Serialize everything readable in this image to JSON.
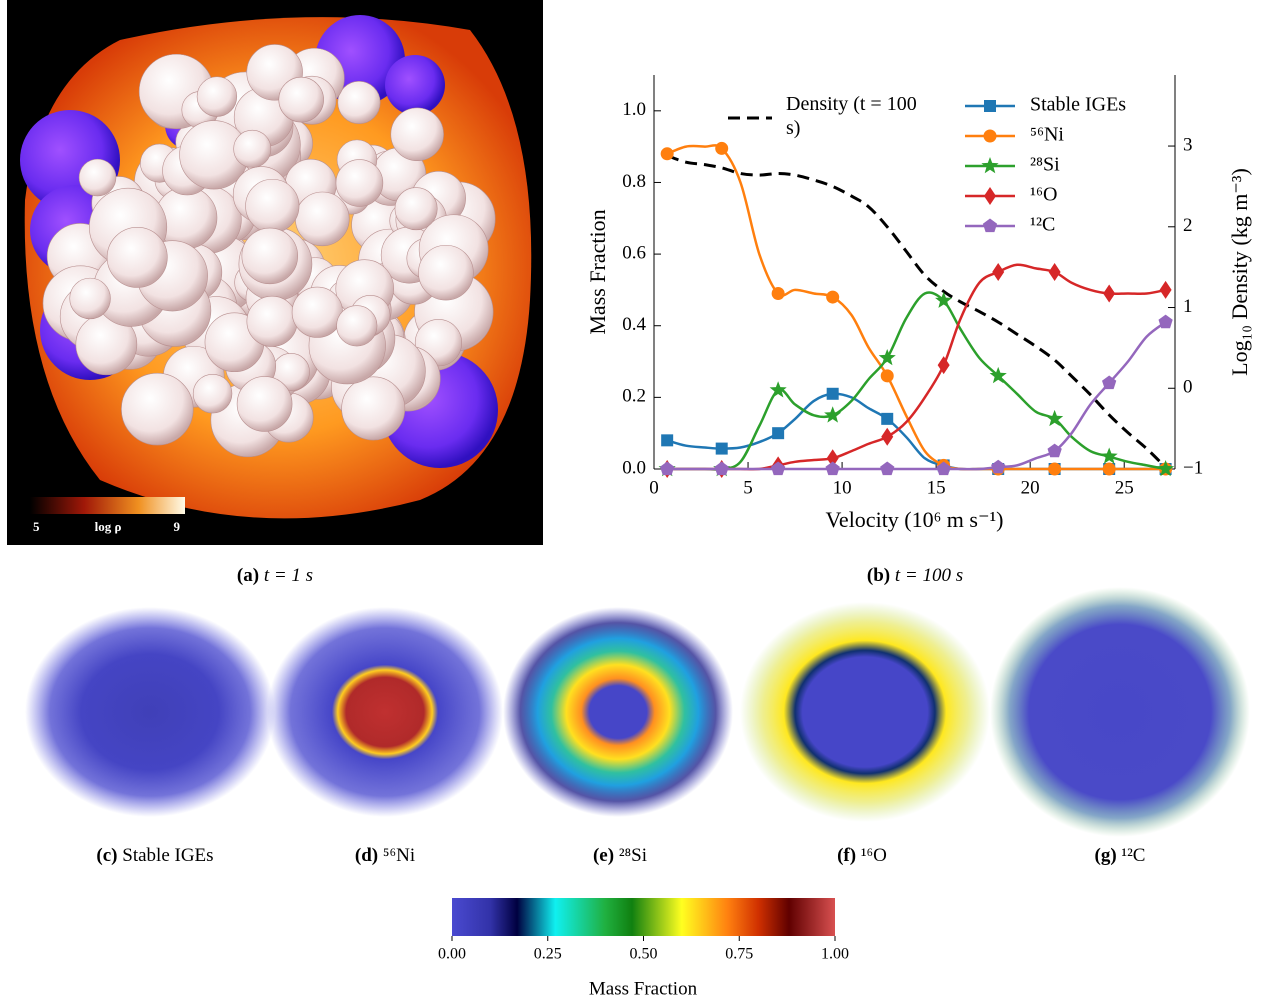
{
  "panel_a": {
    "colorbar": {
      "min_label": "5",
      "label": "log ρ",
      "max_label": "9"
    }
  },
  "chart_data": {
    "type": "line",
    "xlabel": "Velocity (10⁶ m s⁻¹)",
    "ylabel": "Mass Fraction",
    "y2label": "Log₁₀ Density (kg m⁻³)",
    "xlim": [
      0,
      27.7
    ],
    "ylim": [
      0,
      1.1
    ],
    "y2lim": [
      -1,
      3.88
    ],
    "xticks": [
      0,
      5,
      10,
      15,
      20,
      25
    ],
    "yticks": [
      {
        "value": 0,
        "label": "0.0"
      },
      {
        "value": 0.2,
        "label": "0.2"
      },
      {
        "value": 0.4,
        "label": "0.4"
      },
      {
        "value": 0.6,
        "label": "0.6"
      },
      {
        "value": 0.8,
        "label": "0.8"
      },
      {
        "value": 1.0,
        "label": "1.0"
      }
    ],
    "y2ticks": [
      {
        "value": -1,
        "label": "−1"
      },
      0,
      1,
      2,
      3
    ],
    "x": [
      0.7,
      1.7,
      2.7,
      3.6,
      4.6,
      5.6,
      6.6,
      7.5,
      8.5,
      9.5,
      10.5,
      11.4,
      12.4,
      13.4,
      14.4,
      15.4,
      16.3,
      17.3,
      18.3,
      19.3,
      20.3,
      21.3,
      22.2,
      23.2,
      24.2,
      25.2,
      26.2,
      27.2
    ],
    "series": [
      {
        "name": "Density (t = 100 s)",
        "color": "#000000",
        "axis": "y2",
        "dashed": true,
        "values": [
          2.88,
          2.8,
          2.77,
          2.73,
          2.66,
          2.64,
          2.66,
          2.64,
          2.58,
          2.5,
          2.38,
          2.25,
          2.0,
          1.7,
          1.4,
          1.2,
          1.07,
          0.95,
          0.82,
          0.67,
          0.52,
          0.35,
          0.15,
          -0.08,
          -0.33,
          -0.55,
          -0.75,
          -0.98
        ]
      },
      {
        "name": "Stable IGEs",
        "color": "#1f77b4",
        "marker": "square",
        "values": [
          0.08,
          0.065,
          0.06,
          0.057,
          0.06,
          0.075,
          0.1,
          0.14,
          0.19,
          0.21,
          0.2,
          0.17,
          0.14,
          0.09,
          0.03,
          0.01,
          0,
          0,
          0,
          0,
          0,
          0,
          0,
          0,
          0,
          0,
          0,
          0
        ]
      },
      {
        "name": "⁵⁶Ni",
        "color": "#ff7f0e",
        "marker": "circle",
        "values": [
          0.88,
          0.9,
          0.9,
          0.895,
          0.8,
          0.6,
          0.49,
          0.5,
          0.49,
          0.48,
          0.43,
          0.34,
          0.26,
          0.15,
          0.05,
          0.01,
          0,
          0,
          0,
          0,
          0,
          0,
          0,
          0,
          0,
          0,
          0,
          0
        ]
      },
      {
        "name": "²⁸Si",
        "color": "#2ca02c",
        "marker": "star",
        "values": [
          0,
          0,
          0,
          0,
          0.02,
          0.12,
          0.22,
          0.18,
          0.15,
          0.15,
          0.19,
          0.25,
          0.31,
          0.42,
          0.49,
          0.47,
          0.39,
          0.31,
          0.26,
          0.21,
          0.16,
          0.14,
          0.09,
          0.05,
          0.035,
          0.02,
          0.01,
          0
        ]
      },
      {
        "name": "¹⁶O",
        "color": "#d62728",
        "marker": "diamond",
        "values": [
          0,
          0,
          0,
          0,
          0,
          0,
          0.01,
          0.02,
          0.025,
          0.03,
          0.05,
          0.07,
          0.09,
          0.13,
          0.2,
          0.29,
          0.42,
          0.52,
          0.55,
          0.57,
          0.56,
          0.55,
          0.52,
          0.5,
          0.49,
          0.49,
          0.49,
          0.5
        ]
      },
      {
        "name": "¹²C",
        "color": "#9467bd",
        "marker": "pentagon",
        "values": [
          0,
          0,
          0,
          0,
          0,
          0,
          0,
          0,
          0,
          0,
          0,
          0,
          0,
          0,
          0,
          0,
          0,
          0,
          0.005,
          0.01,
          0.03,
          0.05,
          0.1,
          0.18,
          0.24,
          0.3,
          0.37,
          0.41
        ]
      }
    ]
  },
  "captions": [
    {
      "label": "(a)",
      "text": "t = 1 s"
    },
    {
      "label": "(b)",
      "text": "t = 100 s"
    },
    {
      "label": "(c)",
      "text": "Stable IGEs"
    },
    {
      "label": "(d)",
      "text": "⁵⁶Ni"
    },
    {
      "label": "(e)",
      "text": "²⁸Si"
    },
    {
      "label": "(f)",
      "text": "¹⁶O"
    },
    {
      "label": "(g)",
      "text": "¹²C"
    }
  ],
  "colorbar": {
    "ticks": [
      "0.00",
      "0.25",
      "0.50",
      "0.75",
      "1.00"
    ],
    "label": "Mass Fraction"
  }
}
